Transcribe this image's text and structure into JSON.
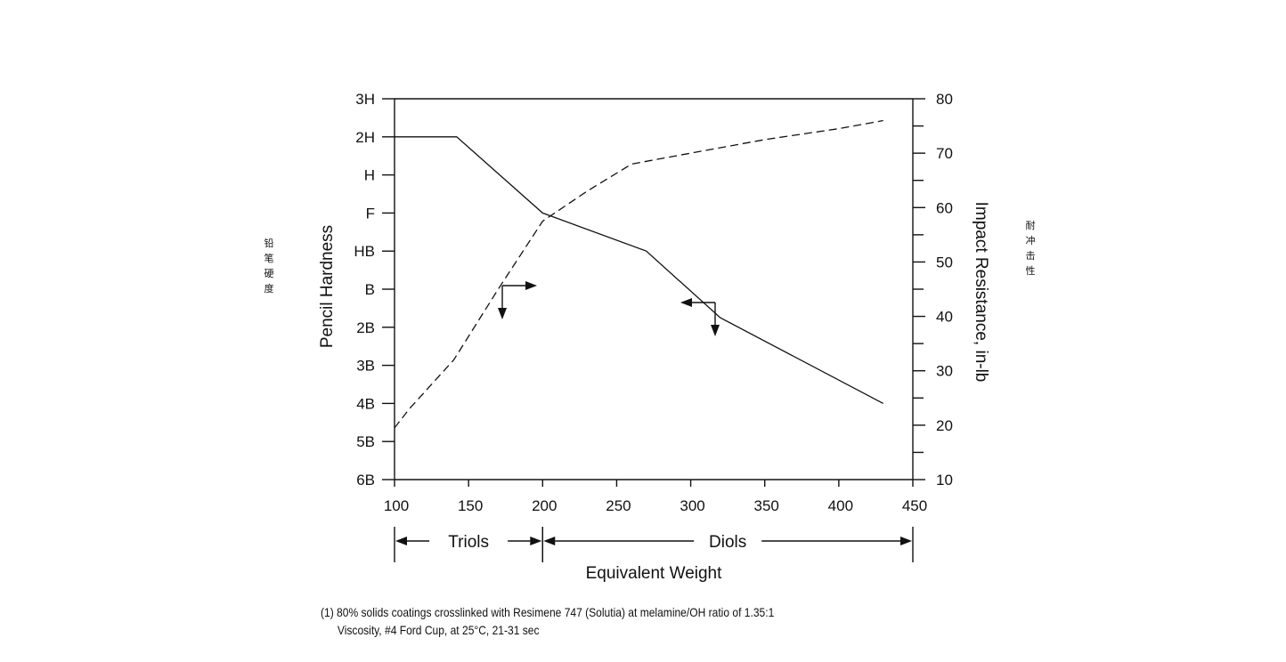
{
  "chart_data": {
    "type": "line",
    "xlabel": "Equivalent Weight",
    "ylabel_left": "Pencil Hardness",
    "ylabel_right": "Impact Resistance, in-lb",
    "x_ticks": [
      "100",
      "150",
      "200",
      "250",
      "300",
      "350",
      "400",
      "450"
    ],
    "xlim": [
      100,
      450
    ],
    "left_ticks": [
      "3H",
      "2H",
      "H",
      "F",
      "HB",
      "B",
      "2B",
      "3B",
      "4B",
      "5B",
      "6B"
    ],
    "right_ticks": [
      "80",
      "70",
      "60",
      "50",
      "40",
      "30",
      "20",
      "10"
    ],
    "ylim_right": [
      10,
      80
    ],
    "series": [
      {
        "axis": "left",
        "style": "solid",
        "x": [
          100,
          142,
          200,
          270,
          320,
          430
        ],
        "y": [
          "2H",
          "2H",
          "F",
          "HB",
          "2B+",
          "4B"
        ]
      },
      {
        "axis": "right",
        "style": "dashed",
        "x": [
          100,
          110,
          140,
          170,
          200,
          230,
          260,
          300,
          350,
          400,
          430
        ],
        "y": [
          19.5,
          23,
          32,
          45,
          57.5,
          63,
          68,
          70,
          72.5,
          74.5,
          76
        ]
      }
    ],
    "ranges": [
      {
        "label": "Triols",
        "from": 100,
        "to": 200
      },
      {
        "label": "Diols",
        "from": 200,
        "to": 450
      }
    ]
  },
  "side_labels": {
    "left": "铅笔硬度",
    "right": "耐冲击性"
  },
  "footnote": {
    "line1": "(1) 80% solids coatings crosslinked with Resimene 747 (Solutia) at melamine/OH ratio of 1.35:1",
    "line2": "Viscosity, #4 Ford Cup, at 25°C, 21-31 sec"
  }
}
